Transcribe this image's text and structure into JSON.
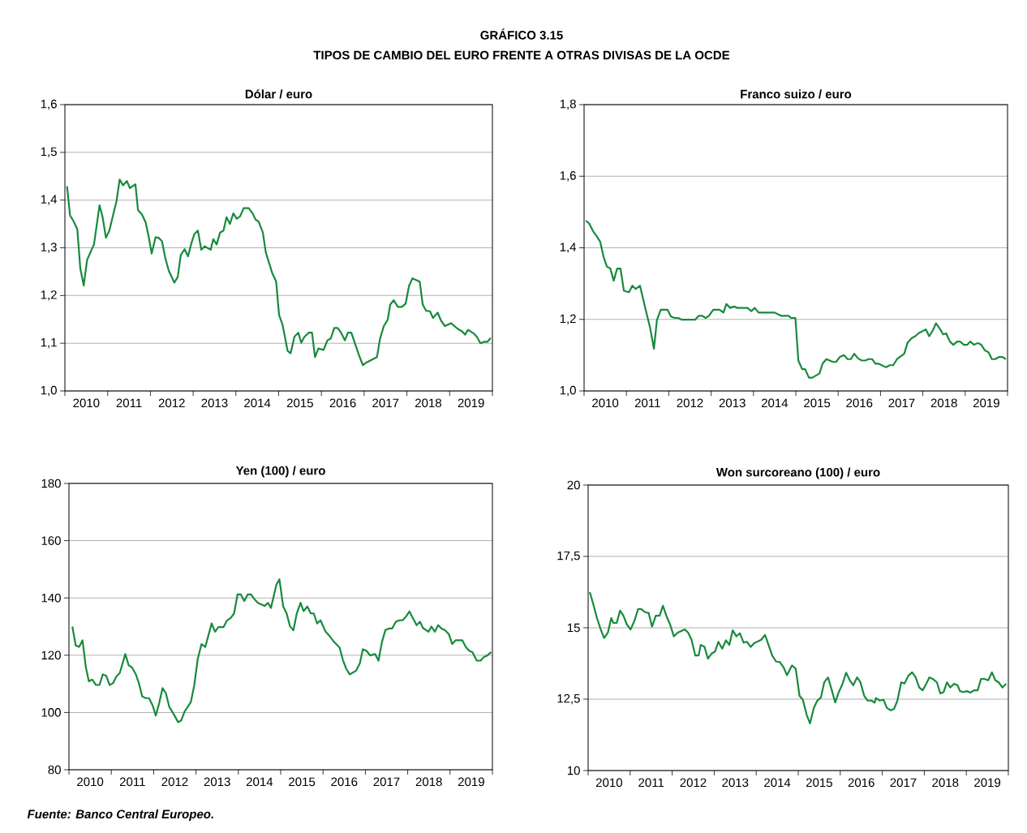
{
  "chart_data": [
    {
      "type": "other",
      "title": "GRÁFICO 3.15",
      "subtitle": "TIPOS DE CAMBIO DEL EURO FRENTE A OTRAS DIVISAS DE LA OCDE",
      "annotations": [
        "Fuente: Banco Central Europeo."
      ]
    },
    {
      "type": "line",
      "title": "Dólar / euro",
      "grid": "y",
      "xlim": [
        2010,
        2020
      ],
      "ylim": [
        1.0,
        1.6
      ],
      "yticks": [
        {
          "value": 1.0,
          "label": "1,0"
        },
        {
          "value": 1.1,
          "label": "1,1"
        },
        {
          "value": 1.2,
          "label": "1,2"
        },
        {
          "value": 1.3,
          "label": "1,3"
        },
        {
          "value": 1.4,
          "label": "1,4"
        },
        {
          "value": 1.5,
          "label": "1,5"
        },
        {
          "value": 1.6,
          "label": "1,6"
        }
      ],
      "xticks": [
        {
          "value": 2010,
          "label": null
        },
        {
          "value": 2010.5,
          "label": "2010"
        },
        {
          "value": 2011,
          "label": null
        },
        {
          "value": 2011.5,
          "label": "2011"
        },
        {
          "value": 2012,
          "label": null
        },
        {
          "value": 2012.5,
          "label": "2012"
        },
        {
          "value": 2013,
          "label": null
        },
        {
          "value": 2013.5,
          "label": "2013"
        },
        {
          "value": 2014,
          "label": null
        },
        {
          "value": 2014.5,
          "label": "2014"
        },
        {
          "value": 2015,
          "label": null
        },
        {
          "value": 2015.5,
          "label": "2015"
        },
        {
          "value": 2016,
          "label": null
        },
        {
          "value": 2016.5,
          "label": "2016"
        },
        {
          "value": 2017,
          "label": null
        },
        {
          "value": 2017.5,
          "label": "2017"
        },
        {
          "value": 2018,
          "label": null
        },
        {
          "value": 2018.5,
          "label": "2018"
        },
        {
          "value": 2019,
          "label": null
        },
        {
          "value": 2019.5,
          "label": "2019"
        },
        {
          "value": 2020,
          "label": null
        }
      ],
      "x": [
        2010.05,
        2010.12,
        2010.2,
        2010.29,
        2010.36,
        2010.44,
        2010.52,
        2010.68,
        2010.81,
        2010.88,
        2010.96,
        2011.04,
        2011.12,
        2011.21,
        2011.28,
        2011.36,
        2011.45,
        2011.52,
        2011.65,
        2011.71,
        2011.8,
        2011.89,
        2011.96,
        2012.03,
        2012.12,
        2012.19,
        2012.27,
        2012.35,
        2012.43,
        2012.56,
        2012.64,
        2012.71,
        2012.8,
        2012.88,
        2012.96,
        2013.03,
        2013.11,
        2013.19,
        2013.27,
        2013.41,
        2013.47,
        2013.55,
        2013.63,
        2013.71,
        2013.78,
        2013.86,
        2013.94,
        2014.02,
        2014.1,
        2014.18,
        2014.3,
        2014.39,
        2014.46,
        2014.53,
        2014.63,
        2014.7,
        2014.85,
        2014.94,
        2015.01,
        2015.09,
        2015.21,
        2015.28,
        2015.37,
        2015.46,
        2015.53,
        2015.6,
        2015.7,
        2015.78,
        2015.85,
        2015.93,
        2016.05,
        2016.14,
        2016.22,
        2016.3,
        2016.38,
        2016.46,
        2016.55,
        2016.62,
        2016.7,
        2016.87,
        2016.97,
        2017.06,
        2017.3,
        2017.37,
        2017.46,
        2017.55,
        2017.61,
        2017.69,
        2017.79,
        2017.88,
        2017.97,
        2018.05,
        2018.13,
        2018.3,
        2018.37,
        2018.45,
        2018.54,
        2018.61,
        2018.72,
        2018.8,
        2018.89,
        2019.03,
        2019.19,
        2019.29,
        2019.36,
        2019.43,
        2019.57,
        2019.64,
        2019.72,
        2019.8,
        2019.88,
        2019.96
      ],
      "series": [
        {
          "color": "#178a3c",
          "values": [
            1.429,
            1.368,
            1.356,
            1.339,
            1.257,
            1.221,
            1.275,
            1.307,
            1.389,
            1.365,
            1.321,
            1.336,
            1.366,
            1.399,
            1.443,
            1.431,
            1.44,
            1.425,
            1.433,
            1.379,
            1.37,
            1.353,
            1.323,
            1.288,
            1.322,
            1.321,
            1.314,
            1.278,
            1.252,
            1.227,
            1.239,
            1.285,
            1.297,
            1.282,
            1.31,
            1.329,
            1.336,
            1.296,
            1.303,
            1.296,
            1.318,
            1.307,
            1.332,
            1.336,
            1.364,
            1.35,
            1.372,
            1.361,
            1.366,
            1.383,
            1.383,
            1.372,
            1.359,
            1.355,
            1.332,
            1.29,
            1.247,
            1.23,
            1.159,
            1.139,
            1.084,
            1.079,
            1.114,
            1.122,
            1.101,
            1.113,
            1.122,
            1.122,
            1.071,
            1.089,
            1.086,
            1.106,
            1.11,
            1.132,
            1.132,
            1.122,
            1.106,
            1.122,
            1.122,
            1.077,
            1.054,
            1.06,
            1.071,
            1.109,
            1.136,
            1.149,
            1.181,
            1.19,
            1.176,
            1.176,
            1.183,
            1.22,
            1.236,
            1.229,
            1.181,
            1.168,
            1.167,
            1.153,
            1.164,
            1.147,
            1.136,
            1.142,
            1.13,
            1.125,
            1.118,
            1.128,
            1.12,
            1.113,
            1.1,
            1.103,
            1.103,
            1.111
          ]
        }
      ]
    },
    {
      "type": "line",
      "title": "Franco suizo / euro",
      "grid": "y",
      "xlim": [
        2010,
        2020
      ],
      "ylim": [
        1.0,
        1.8
      ],
      "yticks": [
        {
          "value": 1.0,
          "label": "1,0"
        },
        {
          "value": 1.2,
          "label": "1,2"
        },
        {
          "value": 1.4,
          "label": "1,4"
        },
        {
          "value": 1.6,
          "label": "1,6"
        },
        {
          "value": 1.8,
          "label": "1,8"
        }
      ],
      "xticks": [
        {
          "value": 2010,
          "label": null
        },
        {
          "value": 2010.5,
          "label": "2010"
        },
        {
          "value": 2011,
          "label": null
        },
        {
          "value": 2011.5,
          "label": "2011"
        },
        {
          "value": 2012,
          "label": null
        },
        {
          "value": 2012.5,
          "label": "2012"
        },
        {
          "value": 2013,
          "label": null
        },
        {
          "value": 2013.5,
          "label": "2013"
        },
        {
          "value": 2014,
          "label": null
        },
        {
          "value": 2014.5,
          "label": "2014"
        },
        {
          "value": 2015,
          "label": null
        },
        {
          "value": 2015.5,
          "label": "2015"
        },
        {
          "value": 2016,
          "label": null
        },
        {
          "value": 2016.5,
          "label": "2016"
        },
        {
          "value": 2017,
          "label": null
        },
        {
          "value": 2017.5,
          "label": "2017"
        },
        {
          "value": 2018,
          "label": null
        },
        {
          "value": 2018.5,
          "label": "2018"
        },
        {
          "value": 2019,
          "label": null
        },
        {
          "value": 2019.5,
          "label": "2019"
        },
        {
          "value": 2020,
          "label": null
        }
      ],
      "x": [
        2010.04,
        2010.12,
        2010.22,
        2010.3,
        2010.38,
        2010.46,
        2010.54,
        2010.62,
        2010.7,
        2010.78,
        2010.86,
        2010.94,
        2011.06,
        2011.14,
        2011.22,
        2011.32,
        2011.47,
        2011.56,
        2011.65,
        2011.72,
        2011.81,
        2011.97,
        2012.05,
        2012.14,
        2012.22,
        2012.31,
        2012.62,
        2012.71,
        2012.79,
        2012.87,
        2012.95,
        2013.05,
        2013.2,
        2013.29,
        2013.36,
        2013.45,
        2013.54,
        2013.62,
        2013.86,
        2013.95,
        2014.03,
        2014.12,
        2014.5,
        2014.65,
        2014.83,
        2014.89,
        2014.99,
        2015.06,
        2015.15,
        2015.22,
        2015.31,
        2015.39,
        2015.56,
        2015.63,
        2015.72,
        2015.88,
        2015.95,
        2016.04,
        2016.14,
        2016.22,
        2016.3,
        2016.38,
        2016.47,
        2016.56,
        2016.64,
        2016.72,
        2016.8,
        2016.88,
        2016.96,
        2017.13,
        2017.22,
        2017.3,
        2017.39,
        2017.56,
        2017.64,
        2017.74,
        2017.82,
        2017.91,
        2018.07,
        2018.15,
        2018.24,
        2018.31,
        2018.39,
        2018.48,
        2018.55,
        2018.64,
        2018.72,
        2018.81,
        2018.88,
        2018.97,
        2019.05,
        2019.12,
        2019.21,
        2019.3,
        2019.38,
        2019.46,
        2019.55,
        2019.63,
        2019.71,
        2019.8,
        2019.88,
        2019.96
      ],
      "series": [
        {
          "color": "#178a3c",
          "values": [
            1.476,
            1.468,
            1.445,
            1.432,
            1.417,
            1.375,
            1.347,
            1.342,
            1.308,
            1.342,
            1.342,
            1.28,
            1.276,
            1.294,
            1.285,
            1.294,
            1.219,
            1.176,
            1.118,
            1.198,
            1.227,
            1.227,
            1.208,
            1.204,
            1.204,
            1.199,
            1.199,
            1.21,
            1.21,
            1.204,
            1.21,
            1.227,
            1.227,
            1.219,
            1.243,
            1.232,
            1.236,
            1.232,
            1.232,
            1.223,
            1.232,
            1.219,
            1.219,
            1.21,
            1.21,
            1.204,
            1.204,
            1.085,
            1.061,
            1.061,
            1.037,
            1.037,
            1.049,
            1.076,
            1.089,
            1.081,
            1.081,
            1.095,
            1.1,
            1.089,
            1.089,
            1.104,
            1.091,
            1.085,
            1.085,
            1.089,
            1.089,
            1.076,
            1.076,
            1.066,
            1.072,
            1.072,
            1.089,
            1.104,
            1.135,
            1.148,
            1.153,
            1.162,
            1.172,
            1.153,
            1.17,
            1.189,
            1.176,
            1.158,
            1.161,
            1.138,
            1.129,
            1.138,
            1.138,
            1.129,
            1.129,
            1.138,
            1.129,
            1.134,
            1.129,
            1.114,
            1.108,
            1.089,
            1.089,
            1.095,
            1.095,
            1.089
          ]
        }
      ]
    },
    {
      "type": "line",
      "title": "Yen (100) / euro",
      "grid": "y",
      "xlim": [
        2010,
        2020
      ],
      "ylim": [
        80,
        180
      ],
      "yticks": [
        80,
        100,
        120,
        140,
        160,
        180
      ],
      "xticks": [
        {
          "value": 2010,
          "label": null
        },
        {
          "value": 2010.5,
          "label": "2010"
        },
        {
          "value": 2011,
          "label": null
        },
        {
          "value": 2011.5,
          "label": "2011"
        },
        {
          "value": 2012,
          "label": null
        },
        {
          "value": 2012.5,
          "label": "2012"
        },
        {
          "value": 2013,
          "label": null
        },
        {
          "value": 2013.5,
          "label": "2013"
        },
        {
          "value": 2014,
          "label": null
        },
        {
          "value": 2014.5,
          "label": "2014"
        },
        {
          "value": 2015,
          "label": null
        },
        {
          "value": 2015.5,
          "label": "2015"
        },
        {
          "value": 2016,
          "label": null
        },
        {
          "value": 2016.5,
          "label": "2016"
        },
        {
          "value": 2017,
          "label": null
        },
        {
          "value": 2017.5,
          "label": "2017"
        },
        {
          "value": 2018,
          "label": null
        },
        {
          "value": 2018.5,
          "label": "2018"
        },
        {
          "value": 2019,
          "label": null
        },
        {
          "value": 2019.5,
          "label": "2019"
        },
        {
          "value": 2020,
          "label": null
        }
      ],
      "x": [
        2010.08,
        2010.16,
        2010.24,
        2010.32,
        2010.4,
        2010.47,
        2010.55,
        2010.64,
        2010.72,
        2010.8,
        2010.88,
        2010.96,
        2011.04,
        2011.12,
        2011.2,
        2011.33,
        2011.41,
        2011.49,
        2011.58,
        2011.65,
        2011.73,
        2011.81,
        2011.89,
        2011.98,
        2012.05,
        2012.13,
        2012.21,
        2012.29,
        2012.37,
        2012.45,
        2012.58,
        2012.65,
        2012.73,
        2012.88,
        2012.96,
        2013.04,
        2013.13,
        2013.22,
        2013.37,
        2013.45,
        2013.53,
        2013.65,
        2013.73,
        2013.82,
        2013.9,
        2013.98,
        2014.06,
        2014.14,
        2014.22,
        2014.3,
        2014.39,
        2014.46,
        2014.62,
        2014.7,
        2014.77,
        2014.9,
        2014.97,
        2015.06,
        2015.14,
        2015.22,
        2015.3,
        2015.38,
        2015.47,
        2015.54,
        2015.63,
        2015.71,
        2015.78,
        2015.86,
        2015.94,
        2016.06,
        2016.15,
        2016.24,
        2016.39,
        2016.47,
        2016.55,
        2016.63,
        2016.78,
        2016.87,
        2016.94,
        2017.03,
        2017.11,
        2017.23,
        2017.31,
        2017.39,
        2017.47,
        2017.55,
        2017.63,
        2017.72,
        2017.8,
        2017.88,
        2017.96,
        2018.04,
        2018.12,
        2018.21,
        2018.29,
        2018.36,
        2018.49,
        2018.56,
        2018.64,
        2018.72,
        2018.8,
        2018.88,
        2018.97,
        2019.05,
        2019.13,
        2019.29,
        2019.37,
        2019.45,
        2019.53,
        2019.63,
        2019.72,
        2019.8,
        2019.88,
        2019.97
      ],
      "series": [
        {
          "color": "#178a3c",
          "values": [
            130.0,
            123.4,
            122.9,
            125.2,
            115.7,
            110.9,
            111.5,
            109.6,
            109.6,
            113.3,
            112.8,
            109.6,
            110.2,
            112.6,
            113.8,
            120.4,
            116.5,
            115.7,
            113.3,
            110.3,
            105.6,
            105.0,
            105.0,
            102.3,
            98.9,
            103.2,
            108.5,
            106.7,
            101.9,
            100.0,
            96.6,
            97.2,
            100.3,
            103.7,
            109.6,
            118.6,
            123.9,
            122.9,
            131.1,
            128.2,
            129.8,
            129.8,
            132.1,
            133.0,
            134.6,
            141.2,
            141.2,
            138.9,
            141.2,
            141.2,
            139.4,
            138.3,
            137.2,
            138.3,
            136.5,
            144.7,
            146.5,
            137.0,
            134.6,
            130.1,
            128.7,
            134.6,
            138.3,
            135.4,
            137.0,
            134.6,
            134.6,
            131.1,
            132.2,
            128.2,
            126.8,
            125.0,
            122.7,
            118.3,
            115.2,
            113.3,
            114.6,
            117.2,
            122.1,
            121.5,
            119.9,
            120.4,
            118.1,
            124.5,
            128.7,
            129.3,
            129.3,
            131.7,
            132.2,
            132.2,
            133.5,
            135.3,
            133.0,
            130.5,
            131.7,
            129.5,
            128.2,
            130.0,
            128.2,
            130.5,
            129.3,
            128.7,
            127.4,
            123.9,
            125.2,
            125.2,
            122.9,
            121.6,
            121.0,
            118.1,
            118.1,
            119.4,
            119.9,
            121.1
          ]
        }
      ]
    },
    {
      "type": "line",
      "title": "Won surcoreano (100) / euro",
      "grid": "y",
      "xlim": [
        2010,
        2020
      ],
      "ylim": [
        10,
        20
      ],
      "yticks": [
        10,
        {
          "value": 12.5,
          "label": "12,5"
        },
        15,
        {
          "value": 17.5,
          "label": "17,5"
        },
        20
      ],
      "xticks": [
        {
          "value": 2010,
          "label": null
        },
        {
          "value": 2010.5,
          "label": "2010"
        },
        {
          "value": 2011,
          "label": null
        },
        {
          "value": 2011.5,
          "label": "2011"
        },
        {
          "value": 2012,
          "label": null
        },
        {
          "value": 2012.5,
          "label": "2012"
        },
        {
          "value": 2013,
          "label": null
        },
        {
          "value": 2013.5,
          "label": "2013"
        },
        {
          "value": 2014,
          "label": null
        },
        {
          "value": 2014.5,
          "label": "2014"
        },
        {
          "value": 2015,
          "label": null
        },
        {
          "value": 2015.5,
          "label": "2015"
        },
        {
          "value": 2016,
          "label": null
        },
        {
          "value": 2016.5,
          "label": "2016"
        },
        {
          "value": 2017,
          "label": null
        },
        {
          "value": 2017.5,
          "label": "2017"
        },
        {
          "value": 2018,
          "label": null
        },
        {
          "value": 2018.5,
          "label": "2018"
        },
        {
          "value": 2019,
          "label": null
        },
        {
          "value": 2019.5,
          "label": "2019"
        },
        {
          "value": 2020,
          "label": null
        }
      ],
      "x": [
        2010.04,
        2010.13,
        2010.21,
        2010.3,
        2010.38,
        2010.47,
        2010.55,
        2010.6,
        2010.68,
        2010.76,
        2010.84,
        2010.92,
        2011.01,
        2011.1,
        2011.19,
        2011.27,
        2011.36,
        2011.44,
        2011.52,
        2011.61,
        2011.7,
        2011.78,
        2011.87,
        2011.95,
        2012.04,
        2012.13,
        2012.3,
        2012.38,
        2012.46,
        2012.55,
        2012.63,
        2012.68,
        2012.77,
        2012.85,
        2012.94,
        2013.02,
        2013.1,
        2013.19,
        2013.28,
        2013.36,
        2013.44,
        2013.53,
        2013.61,
        2013.7,
        2013.78,
        2013.87,
        2013.95,
        2014.12,
        2014.21,
        2014.3,
        2014.38,
        2014.47,
        2014.56,
        2014.65,
        2014.73,
        2014.85,
        2014.94,
        2015.03,
        2015.11,
        2015.2,
        2015.28,
        2015.37,
        2015.45,
        2015.54,
        2015.62,
        2015.71,
        2015.8,
        2015.88,
        2015.96,
        2016.05,
        2016.14,
        2016.23,
        2016.31,
        2016.4,
        2016.48,
        2016.57,
        2016.65,
        2016.74,
        2016.82,
        2016.85,
        2016.94,
        2017.03,
        2017.11,
        2017.2,
        2017.28,
        2017.36,
        2017.45,
        2017.53,
        2017.62,
        2017.71,
        2017.79,
        2017.88,
        2017.96,
        2018.04,
        2018.12,
        2018.21,
        2018.3,
        2018.38,
        2018.46,
        2018.54,
        2018.62,
        2018.71,
        2018.79,
        2018.85,
        2018.93,
        2019.01,
        2019.1,
        2019.18,
        2019.27,
        2019.35,
        2019.43,
        2019.52,
        2019.61,
        2019.69,
        2019.77,
        2019.86,
        2019.95
      ],
      "series": [
        {
          "color": "#178a3c",
          "values": [
            16.25,
            15.79,
            15.34,
            14.94,
            14.64,
            14.83,
            15.34,
            15.17,
            15.17,
            15.6,
            15.42,
            15.12,
            14.94,
            15.24,
            15.66,
            15.65,
            15.54,
            15.52,
            15.04,
            15.42,
            15.42,
            15.77,
            15.39,
            15.12,
            14.7,
            14.83,
            14.94,
            14.83,
            14.58,
            14.03,
            14.03,
            14.4,
            14.33,
            13.92,
            14.1,
            14.17,
            14.51,
            14.27,
            14.56,
            14.4,
            14.91,
            14.7,
            14.81,
            14.48,
            14.51,
            14.33,
            14.46,
            14.58,
            14.75,
            14.37,
            14.03,
            13.82,
            13.8,
            13.62,
            13.34,
            13.68,
            13.57,
            12.62,
            12.48,
            11.95,
            11.65,
            12.19,
            12.44,
            12.56,
            13.1,
            13.26,
            12.81,
            12.38,
            12.73,
            13.02,
            13.43,
            13.15,
            12.99,
            13.26,
            13.09,
            12.62,
            12.45,
            12.45,
            12.38,
            12.54,
            12.45,
            12.48,
            12.19,
            12.11,
            12.16,
            12.45,
            13.09,
            13.05,
            13.32,
            13.44,
            13.28,
            12.91,
            12.81,
            13.02,
            13.26,
            13.2,
            13.09,
            12.7,
            12.75,
            13.09,
            12.91,
            13.04,
            12.99,
            12.78,
            12.75,
            12.78,
            12.73,
            12.81,
            12.81,
            13.21,
            13.21,
            13.16,
            13.44,
            13.16,
            13.09,
            12.91,
            13.04
          ]
        }
      ]
    }
  ]
}
